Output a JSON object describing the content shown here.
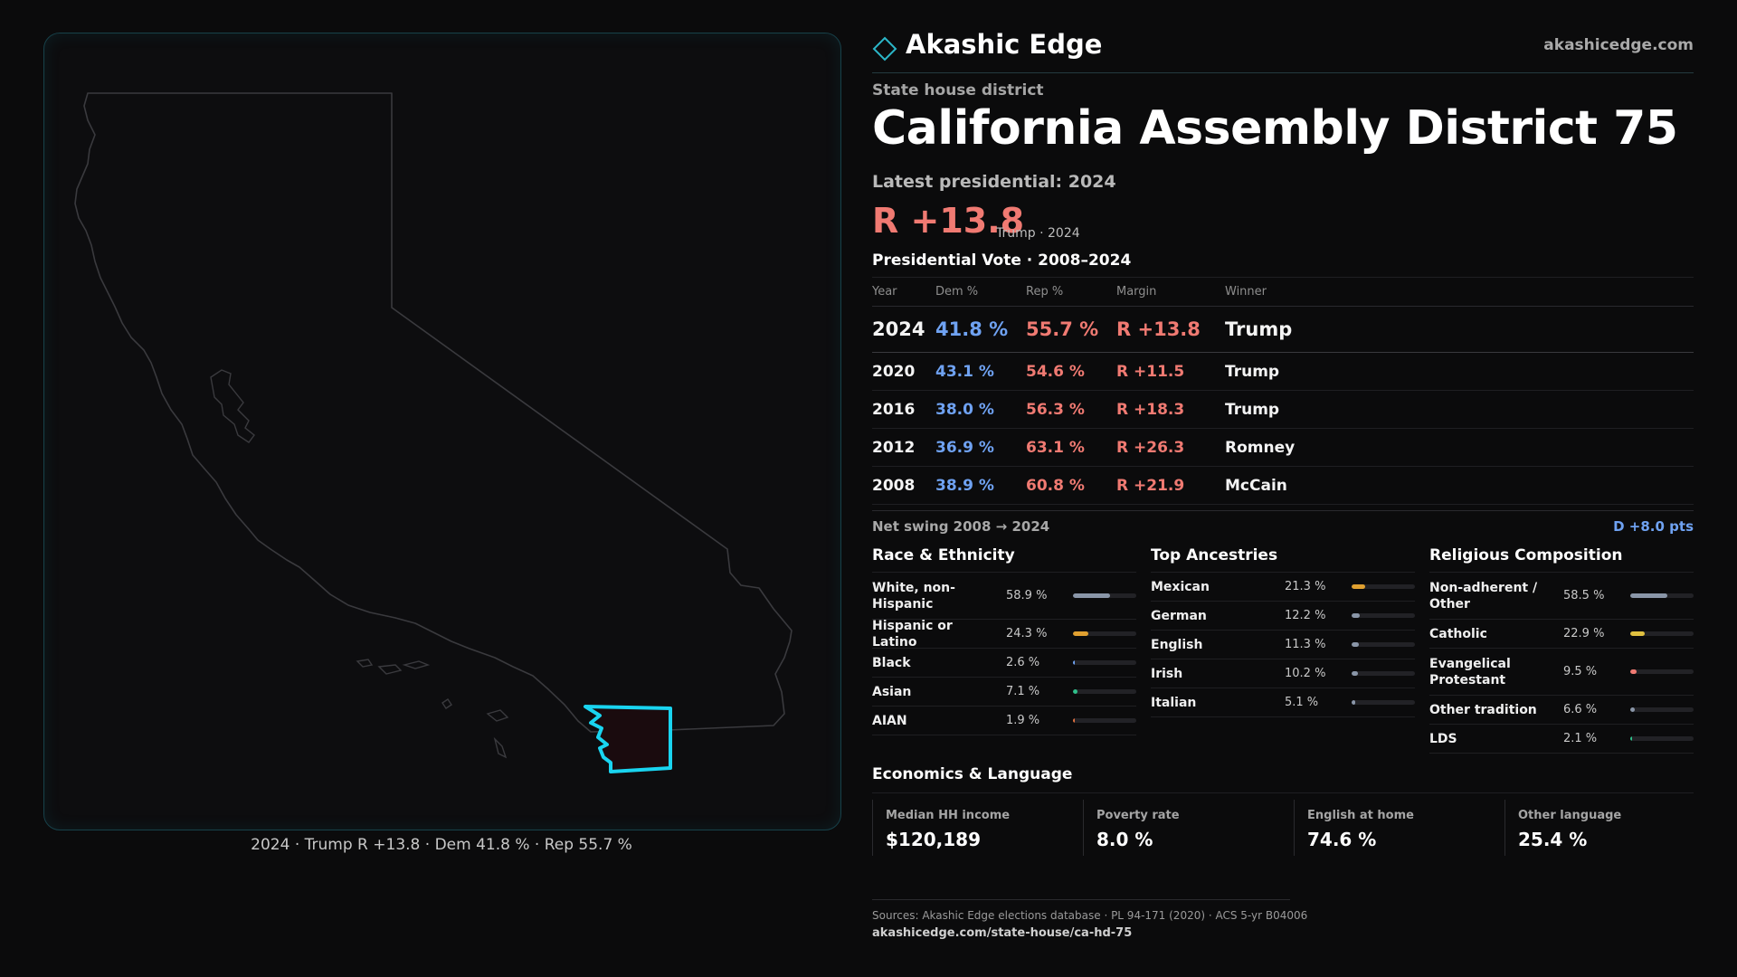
{
  "map": {
    "caption": "2024 · Trump R +13.8 · Dem 41.8 % · Rep 55.7 %",
    "state_outline_color": "#3a3a3e",
    "district_color": "#19d4f0",
    "district_fill": "#1a0b0e"
  },
  "brand": {
    "name": "Akashic Edge",
    "url": "akashicedge.com",
    "logo_icon": "diamond-outline-icon"
  },
  "header": {
    "eyebrow": "State house district",
    "title": "California Assembly District 75",
    "latest_label": "Latest presidential: 2024",
    "latest_margin": "R +13.8",
    "latest_sub": "Trump · 2024"
  },
  "presidential": {
    "title": "Presidential Vote · 2008–2024",
    "columns": [
      "Year",
      "Dem %",
      "Rep %",
      "Margin",
      "Winner"
    ],
    "rows": [
      {
        "year": "2024",
        "dem": "41.8 %",
        "rep": "55.7 %",
        "margin": "R +13.8",
        "winner": "Trump"
      },
      {
        "year": "2020",
        "dem": "43.1 %",
        "rep": "54.6 %",
        "margin": "R +11.5",
        "winner": "Trump"
      },
      {
        "year": "2016",
        "dem": "38.0 %",
        "rep": "56.3 %",
        "margin": "R +18.3",
        "winner": "Trump"
      },
      {
        "year": "2012",
        "dem": "36.9 %",
        "rep": "63.1 %",
        "margin": "R +26.3",
        "winner": "Romney"
      },
      {
        "year": "2008",
        "dem": "38.9 %",
        "rep": "60.8 %",
        "margin": "R +21.9",
        "winner": "McCain"
      }
    ],
    "swing_label": "Net swing 2008 → 2024",
    "swing_value": "D +8.0 pts"
  },
  "race": {
    "title": "Race & Ethnicity",
    "items": [
      {
        "label": "White, non-Hispanic",
        "value": "58.9 %",
        "pct": 58.9,
        "color": "#8a96a8",
        "lines": 2
      },
      {
        "label": "Hispanic or Latino",
        "value": "24.3 %",
        "pct": 24.3,
        "color": "#e0a030",
        "lines": 1
      },
      {
        "label": "Black",
        "value": "2.6 %",
        "pct": 2.6,
        "color": "#6fa2f2",
        "lines": 1
      },
      {
        "label": "Asian",
        "value": "7.1 %",
        "pct": 7.1,
        "color": "#2fc08a",
        "lines": 1
      },
      {
        "label": "AIAN",
        "value": "1.9 %",
        "pct": 1.9,
        "color": "#e07040",
        "lines": 1
      }
    ]
  },
  "ancestry": {
    "title": "Top Ancestries",
    "items": [
      {
        "label": "Mexican",
        "value": "21.3 %",
        "pct": 21.3,
        "color": "#e0a030",
        "lines": 1
      },
      {
        "label": "German",
        "value": "12.2 %",
        "pct": 12.2,
        "color": "#8a96a8",
        "lines": 1
      },
      {
        "label": "English",
        "value": "11.3 %",
        "pct": 11.3,
        "color": "#8a96a8",
        "lines": 1
      },
      {
        "label": "Irish",
        "value": "10.2 %",
        "pct": 10.2,
        "color": "#8a96a8",
        "lines": 1
      },
      {
        "label": "Italian",
        "value": "5.1 %",
        "pct": 5.1,
        "color": "#8a96a8",
        "lines": 1
      }
    ]
  },
  "religion": {
    "title": "Religious Composition",
    "items": [
      {
        "label": "Non-adherent / Other",
        "value": "58.5 %",
        "pct": 58.5,
        "color": "#8a96a8",
        "lines": 2
      },
      {
        "label": "Catholic",
        "value": "22.9 %",
        "pct": 22.9,
        "color": "#e0c040",
        "lines": 1
      },
      {
        "label": "Evangelical Protestant",
        "value": "9.5 %",
        "pct": 9.5,
        "color": "#f07a72",
        "lines": 2
      },
      {
        "label": "Other tradition",
        "value": "6.6 %",
        "pct": 6.6,
        "color": "#8a96a8",
        "lines": 1
      },
      {
        "label": "LDS",
        "value": "2.1 %",
        "pct": 2.1,
        "color": "#2fc08a",
        "lines": 1
      }
    ]
  },
  "economics": {
    "title": "Economics & Language",
    "items": [
      {
        "label": "Median HH income",
        "value": "$120,189"
      },
      {
        "label": "Poverty rate",
        "value": "8.0 %"
      },
      {
        "label": "English at home",
        "value": "74.6 %"
      },
      {
        "label": "Other language",
        "value": "25.4 %"
      }
    ]
  },
  "footer": {
    "sources": "Sources: Akashic Edge elections database · PL 94-171 (2020) · ACS 5-yr B04006",
    "url": "akashicedge.com/state-house/ca-hd-75"
  }
}
